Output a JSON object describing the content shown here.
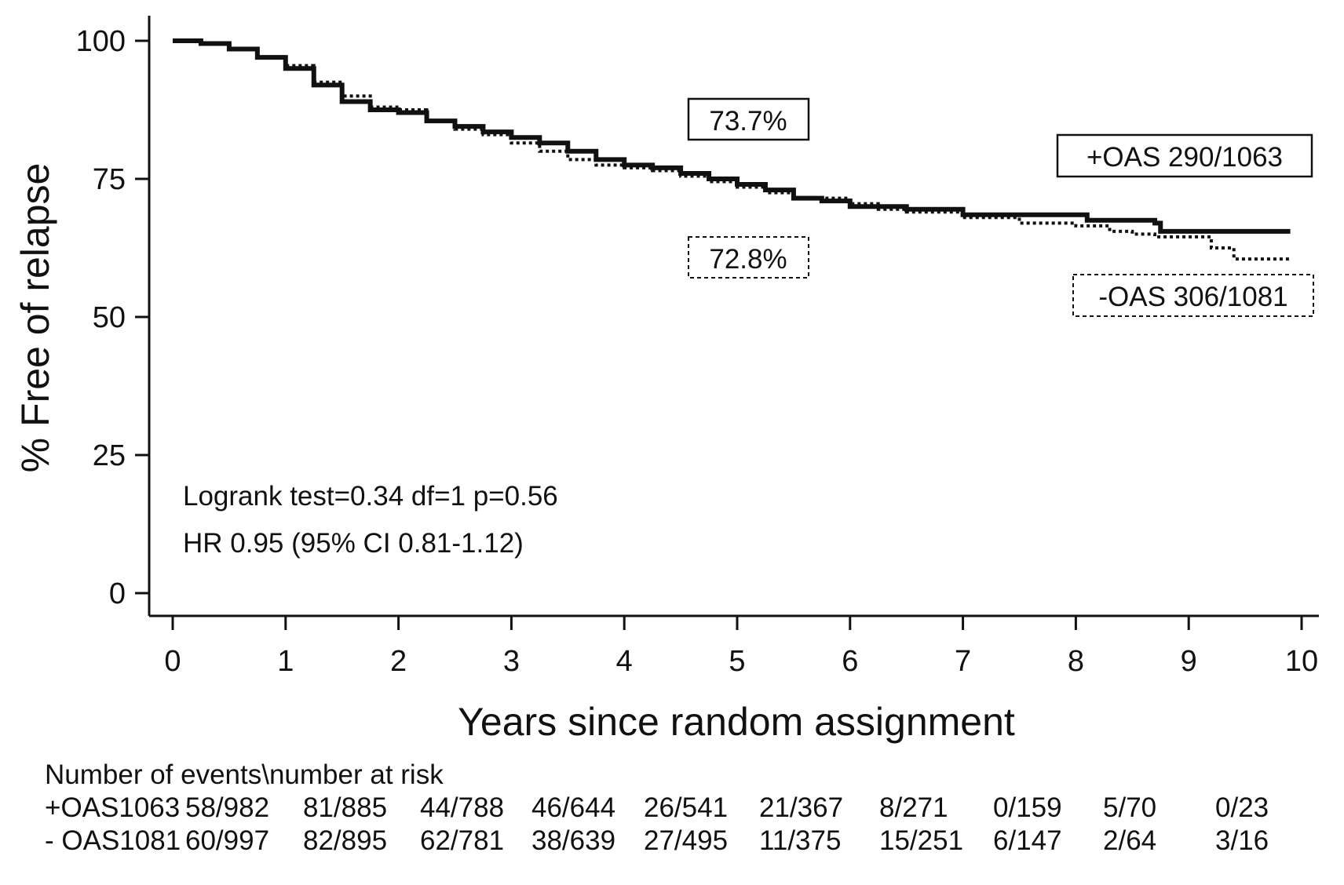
{
  "chart_data": {
    "type": "line",
    "xlabel": "Years since random assignment",
    "ylabel": "% Free of relapse",
    "xlim": [
      0,
      10
    ],
    "ylim": [
      0,
      100
    ],
    "xticks": [
      "0",
      "1",
      "2",
      "3",
      "4",
      "5",
      "6",
      "7",
      "8",
      "9",
      "10"
    ],
    "yticks": [
      "0",
      "25",
      "50",
      "75",
      "100"
    ],
    "grid": false,
    "series": [
      {
        "name": "+OAS 290/1063",
        "style": "solid",
        "x": [
          0,
          0.25,
          0.5,
          0.75,
          1.0,
          1.25,
          1.5,
          1.75,
          2.0,
          2.25,
          2.5,
          2.75,
          3.0,
          3.25,
          3.5,
          3.75,
          4.0,
          4.25,
          4.5,
          4.75,
          5.0,
          5.25,
          5.5,
          5.75,
          6.0,
          6.25,
          6.5,
          6.75,
          7.0,
          7.5,
          8.0,
          8.1,
          8.5,
          8.7,
          8.75,
          9.0,
          9.5,
          9.9
        ],
        "y": [
          100,
          99.5,
          98.5,
          97.0,
          95.0,
          92.0,
          89.0,
          87.5,
          87.0,
          85.5,
          84.5,
          83.5,
          82.5,
          81.5,
          80.0,
          78.5,
          77.5,
          77.0,
          76.0,
          75.0,
          74.0,
          73.0,
          71.5,
          71.0,
          70.0,
          70.0,
          69.5,
          69.5,
          68.5,
          68.5,
          68.5,
          67.5,
          67.5,
          67.0,
          65.5,
          65.5,
          65.5,
          65.5
        ]
      },
      {
        "name": "-OAS 306/1081",
        "style": "dotted",
        "x": [
          0,
          0.25,
          0.5,
          0.75,
          1.0,
          1.25,
          1.5,
          1.75,
          2.0,
          2.25,
          2.5,
          2.75,
          3.0,
          3.25,
          3.5,
          3.75,
          4.0,
          4.25,
          4.5,
          4.75,
          5.0,
          5.25,
          5.5,
          5.75,
          6.0,
          6.25,
          6.5,
          6.75,
          7.0,
          7.5,
          8.0,
          8.3,
          8.5,
          8.7,
          9.0,
          9.2,
          9.4,
          9.9
        ],
        "y": [
          100,
          99.5,
          98.5,
          97.0,
          95.5,
          92.5,
          90.0,
          88.0,
          87.5,
          85.5,
          84.0,
          83.0,
          81.5,
          80.0,
          78.5,
          77.5,
          77.0,
          76.5,
          75.5,
          74.5,
          73.5,
          72.5,
          71.5,
          71.5,
          70.5,
          69.5,
          69.0,
          69.0,
          68.0,
          67.0,
          66.5,
          65.5,
          65.0,
          64.5,
          64.5,
          62.5,
          60.5,
          60.5
        ]
      }
    ],
    "annotations": {
      "box_solid_pct": "73.7%",
      "box_dotted_pct": "72.8%",
      "box_solid_label": "+OAS 290/1063",
      "box_dotted_label": "-OAS 306/1081",
      "logrank": "Logrank test=0.34 df=1 p=0.56",
      "hr": "HR 0.95 (95% CI 0.81-1.12)"
    }
  },
  "risk_table": {
    "title": "Number of events\\number at risk",
    "rows": [
      {
        "label": "+OAS1063",
        "cells": [
          "58/982",
          "81/885",
          "44/788",
          "46/644",
          "26/541",
          "21/367",
          "8/271",
          "0/159",
          "5/70",
          "0/23"
        ]
      },
      {
        "label": "- OAS1081",
        "cells": [
          "60/997",
          "82/895",
          "62/781",
          "38/639",
          "27/495",
          "11/375",
          "15/251",
          "6/147",
          "2/64",
          "3/16"
        ]
      }
    ]
  }
}
